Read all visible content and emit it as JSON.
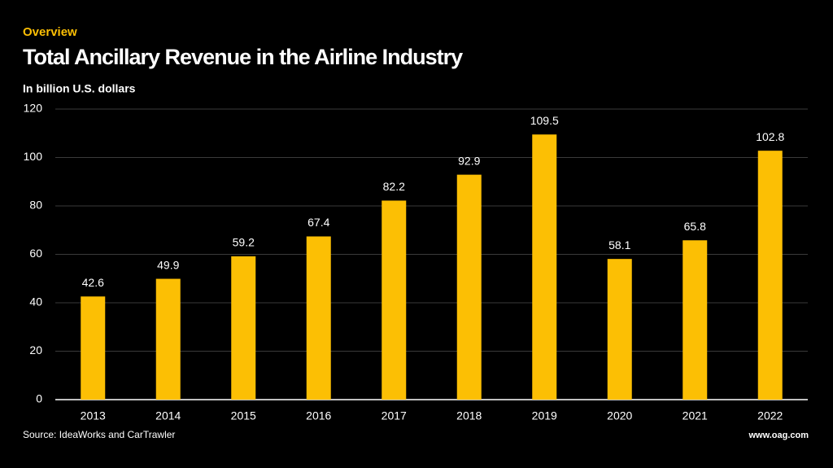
{
  "chart_data": {
    "type": "bar",
    "kicker": "Overview",
    "title": "Total Ancillary Revenue in the Airline Industry",
    "subtitle": "In billion U.S. dollars",
    "source": "Source: IdeaWorks and CarTrawler",
    "website": "www.oag.com",
    "categories": [
      "2013",
      "2014",
      "2015",
      "2016",
      "2017",
      "2018",
      "2019",
      "2020",
      "2021",
      "2022"
    ],
    "values": [
      42.6,
      49.9,
      59.2,
      67.4,
      82.2,
      92.9,
      109.5,
      58.1,
      65.8,
      102.8
    ],
    "color": "#fcbf04",
    "ylim": [
      0,
      120
    ],
    "yticks": [
      0,
      20,
      40,
      60,
      80,
      100,
      120
    ],
    "grid": true
  }
}
